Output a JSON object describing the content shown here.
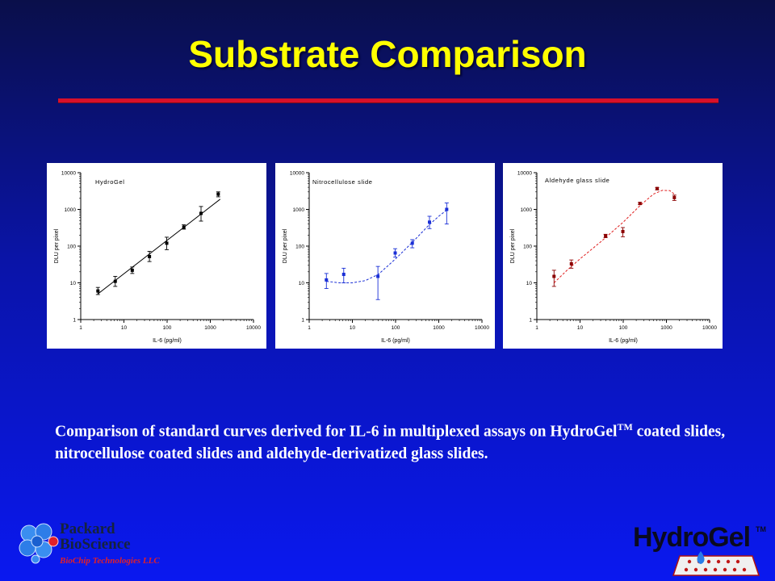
{
  "slide": {
    "title": "Substrate Comparison",
    "caption_main": "Comparison of standard curves derived for IL-6 in multiplexed assays on HydroGel",
    "caption_tm": "TM",
    "caption_rest": " coated slides, nitrocellulose coated slides and aldehyde-derivatized glass slides.",
    "accent_color": "#ffff00",
    "rule_color": "#d8102a"
  },
  "logos": {
    "left_line1": "Packard",
    "left_line2": "BioScience",
    "left_line3": "BioChip Technologies LLC",
    "right_text": "HydroGel",
    "right_tm": "TM"
  },
  "chart_data": [
    {
      "type": "scatter",
      "title": "HydroGel",
      "xlabel": "IL-6 (pg/ml)",
      "ylabel": "DLU per pixel",
      "xscale": "log",
      "yscale": "log",
      "xlim": [
        1,
        10000
      ],
      "ylim": [
        1,
        10000
      ],
      "x_ticks": [
        "1",
        "10",
        "100",
        "1000",
        "10000"
      ],
      "y_ticks": [
        "1",
        "10",
        "100",
        "1000",
        "10000"
      ],
      "color": "#000000",
      "fit": "linear",
      "points": [
        {
          "x": 2.5,
          "y": 6,
          "lo": 4.8,
          "hi": 7.5
        },
        {
          "x": 6.3,
          "y": 11,
          "lo": 8,
          "hi": 15
        },
        {
          "x": 15.6,
          "y": 22,
          "lo": 18,
          "hi": 27
        },
        {
          "x": 39,
          "y": 52,
          "lo": 38,
          "hi": 72
        },
        {
          "x": 98,
          "y": 120,
          "lo": 80,
          "hi": 175
        },
        {
          "x": 244,
          "y": 330,
          "lo": 290,
          "hi": 380
        },
        {
          "x": 610,
          "y": 780,
          "lo": 480,
          "hi": 1200
        },
        {
          "x": 1526,
          "y": 2600,
          "lo": 2200,
          "hi": 3000
        }
      ],
      "fit_points": [
        [
          2.5,
          5
        ],
        [
          1700,
          1900
        ]
      ]
    },
    {
      "type": "scatter",
      "title": "Nitrocellulose slide",
      "xlabel": "IL-6 (pg/ml)",
      "ylabel": "DLU per pixel",
      "xscale": "log",
      "yscale": "log",
      "xlim": [
        1,
        10000
      ],
      "ylim": [
        1,
        10000
      ],
      "x_ticks": [
        "1",
        "10",
        "100",
        "1000",
        "10000"
      ],
      "y_ticks": [
        "1",
        "10",
        "100",
        "1000",
        "10000"
      ],
      "color": "#1a2fd6",
      "fit": "dashed",
      "points": [
        {
          "x": 2.5,
          "y": 12,
          "lo": 7,
          "hi": 18
        },
        {
          "x": 6.3,
          "y": 17,
          "lo": 10,
          "hi": 25
        },
        {
          "x": 39,
          "y": 15,
          "lo": 3.5,
          "hi": 28
        },
        {
          "x": 98,
          "y": 65,
          "lo": 50,
          "hi": 85
        },
        {
          "x": 244,
          "y": 120,
          "lo": 90,
          "hi": 150
        },
        {
          "x": 610,
          "y": 450,
          "lo": 300,
          "hi": 650
        },
        {
          "x": 1526,
          "y": 1000,
          "lo": 400,
          "hi": 1500
        }
      ],
      "fit_points": [
        [
          2.5,
          11
        ],
        [
          5,
          10
        ],
        [
          10,
          10
        ],
        [
          20,
          11.5
        ],
        [
          40,
          17
        ],
        [
          100,
          45
        ],
        [
          250,
          130
        ],
        [
          600,
          380
        ],
        [
          1000,
          650
        ],
        [
          1600,
          1000
        ]
      ]
    },
    {
      "type": "scatter",
      "title": "Aldehyde glass slide",
      "xlabel": "IL-6 (pg/ml)",
      "ylabel": "DLU per pixel",
      "xscale": "log",
      "yscale": "log",
      "xlim": [
        1,
        10000
      ],
      "ylim": [
        1,
        10000
      ],
      "x_ticks": [
        "1",
        "10",
        "100",
        "1000",
        "10000"
      ],
      "y_ticks": [
        "1",
        "10",
        "100",
        "1000",
        "10000"
      ],
      "color": "#8b0000",
      "fit": "dashed",
      "fit_color": "#e02020",
      "points": [
        {
          "x": 2.5,
          "y": 15,
          "lo": 8,
          "hi": 22
        },
        {
          "x": 6.3,
          "y": 33,
          "lo": 25,
          "hi": 42
        },
        {
          "x": 39,
          "y": 190,
          "lo": 170,
          "hi": 210
        },
        {
          "x": 98,
          "y": 250,
          "lo": 180,
          "hi": 320
        },
        {
          "x": 244,
          "y": 1450,
          "lo": 1350,
          "hi": 1550
        },
        {
          "x": 610,
          "y": 3700,
          "lo": 3400,
          "hi": 3950
        },
        {
          "x": 1526,
          "y": 2100,
          "lo": 1750,
          "hi": 2450
        }
      ],
      "fit_points": [
        [
          2.5,
          10
        ],
        [
          5,
          22
        ],
        [
          10,
          45
        ],
        [
          30,
          130
        ],
        [
          100,
          450
        ],
        [
          250,
          1300
        ],
        [
          500,
          2600
        ],
        [
          800,
          3300
        ],
        [
          1200,
          3250
        ],
        [
          1600,
          2500
        ]
      ]
    }
  ]
}
